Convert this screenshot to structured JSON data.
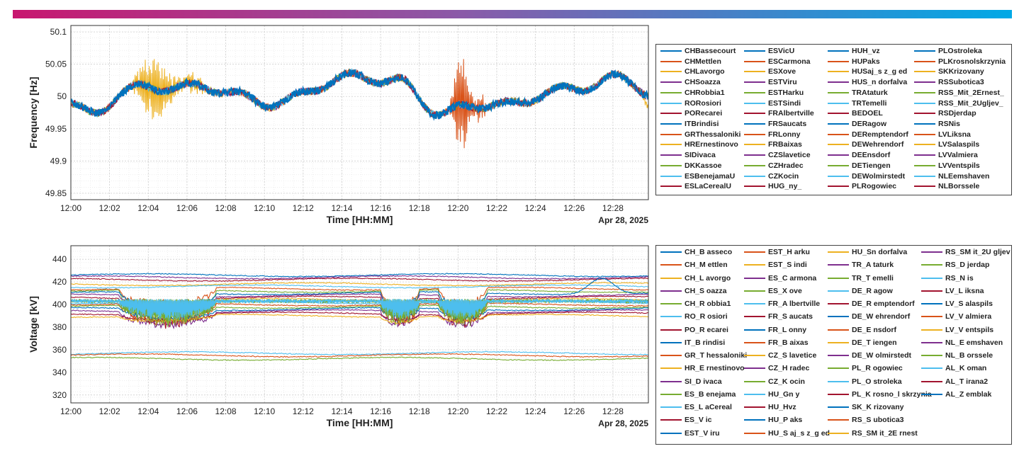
{
  "colors": {
    "topbar_start": "#c8176f",
    "topbar_end": "#00a9e6",
    "palette": [
      "#0072bd",
      "#d95319",
      "#edb120",
      "#7e2f8e",
      "#77ac30",
      "#4dbeee",
      "#a2142f"
    ]
  },
  "chart_data": [
    {
      "type": "line",
      "ylabel": "Frequency [Hz]",
      "xlabel": "Time [HH:MM]",
      "date_label": "Apr 28, 2025",
      "x_ticks": [
        "12:00",
        "12:02",
        "12:04",
        "12:06",
        "12:08",
        "12:10",
        "12:12",
        "12:14",
        "12:16",
        "12:18",
        "12:20",
        "12:22",
        "12:24",
        "12:26",
        "12:28"
      ],
      "y_ticks": [
        "49.85",
        "49.9",
        "49.95",
        "50",
        "50.05",
        "50.1"
      ],
      "xlim": [
        "12:00",
        "12:29:50"
      ],
      "ylim": [
        49.84,
        50.11
      ],
      "grid": "minor dotted",
      "legend_placement": "outside right",
      "legend_columns": 4,
      "legend": [
        "CHBassecourt",
        "CHMettlen",
        "CHLavorgo",
        "CHSoazza",
        "CHRobbia1",
        "RORosiori",
        "PORecarei",
        "ITBrindisi",
        "GRThessaloniki",
        "HRErnestinovo",
        "SIDivaca",
        "DKKassoe",
        "ESBenejamaU",
        "ESLaCerealU",
        "ESVicU",
        "ESCarmona",
        "ESXove",
        "ESTViru",
        "ESTHarku",
        "ESTSindi",
        "FRAlbertville",
        "FRSaucats",
        "FRLonny",
        "FRBaixas",
        "CZSlavetice",
        "CZHradec",
        "CZKocin",
        "HUG_ny_",
        "HUH_vz",
        "HUPaks",
        "HUSaj_s z_g ed",
        "HUS_n dorfalva",
        "TRAtaturk",
        "TRTemelli",
        "BEDOEL",
        "DERagow",
        "DERemptendorf",
        "DEWehrendorf",
        "DEEnsdorf",
        "DETiengen",
        "DEWolmirstedt",
        "PLRogowiec",
        "PLOstroleka",
        "PLKrosnolskrzynia",
        "SKKrizovany",
        "RSSubotica3",
        "RSS_Mit_2Ernest_",
        "RSS_Mit_2Ugljev_",
        "RSDjerdap",
        "RSNis",
        "LVLiksna",
        "LVSalaspils",
        "LVValmiera",
        "LVVentspils",
        "NLEemshaven",
        "NLBorssele"
      ],
      "series_profile": {
        "base": 50.0,
        "oscillation_bursts": [
          {
            "from": "12:03",
            "to": "12:07",
            "amplitude_hz": 0.06,
            "series": "ESXove"
          },
          {
            "from": "12:19:30",
            "to": "12:21:30",
            "amplitude_hz": 0.1,
            "series": "ESCarmona"
          }
        ]
      }
    },
    {
      "type": "line",
      "ylabel": "Voltage [kV]",
      "xlabel": "Time [HH:MM]",
      "date_label": "Apr 28, 2025",
      "x_ticks": [
        "12:00",
        "12:02",
        "12:04",
        "12:06",
        "12:08",
        "12:10",
        "12:12",
        "12:14",
        "12:16",
        "12:18",
        "12:20",
        "12:22",
        "12:24",
        "12:26",
        "12:28"
      ],
      "y_ticks": [
        "320",
        "340",
        "360",
        "380",
        "400",
        "420",
        "440"
      ],
      "xlim": [
        "12:00",
        "12:29:50"
      ],
      "ylim": [
        313,
        452
      ],
      "grid": "minor dotted",
      "legend_placement": "outside right",
      "legend_columns": 4,
      "legend": [
        "CH_B asseco",
        "CH_M ettlen",
        "CH_L avorgo",
        "CH_S oazza",
        "CH_R obbia1",
        "RO_R osiori",
        "PO_R ecarei",
        "IT_B rindisi",
        "GR_T hessaloniki",
        "HR_E rnestinovo",
        "SI_D ivaca",
        "ES_B enejama",
        "ES_L aCereal",
        "ES_V ic",
        "EST_V iru",
        "EST_H arku",
        "EST_S indi",
        "ES_C armona",
        "ES_X ove",
        "FR_A lbertville",
        "FR_S aucats",
        "FR_L onny",
        "FR_B aixas",
        "CZ_S lavetice",
        "CZ_H radec",
        "CZ_K ocin",
        "HU_Gn y",
        "HU_Hvz",
        "HU_P aks",
        "HU_S aj_s z_g ed",
        "HU_Sn dorfalva",
        "TR_A taturk",
        "TR_T emelli",
        "DE_R agow",
        "DE_R emptendorf",
        "DE_W ehrendorf",
        "DE_E nsdorf",
        "DE_T iengen",
        "DE_W olmirstedt",
        "PL_R ogowiec",
        "PL_O stroleka",
        "PL_K rosno_l skrzynia",
        "SK_K rizovany",
        "RS_S ubotica3",
        "RS_SM it_2E rnest",
        "RS_SM it_2U gljev",
        "RS_D jerdap",
        "RS_N is",
        "LV_L iksna",
        "LV_S alaspils",
        "LV_V almiera",
        "LV_V entspils",
        "NL_E emshaven",
        "NL_B orssele",
        "AL_K oman",
        "AL_T irana2",
        "AL_Z emblak"
      ],
      "series_profile": {
        "levels_kv": [
          426,
          424,
          422,
          418,
          416,
          414,
          412,
          410,
          408,
          406,
          404,
          402,
          400,
          398,
          396,
          394,
          392,
          390,
          357,
          355,
          352
        ],
        "dips": [
          {
            "from": "12:02:30",
            "to": "12:07:30",
            "min_kv": 380
          },
          {
            "from": "12:16",
            "to": "12:18",
            "min_kv": 386
          },
          {
            "from": "12:19",
            "to": "12:21:30",
            "min_kv": 382
          }
        ]
      }
    }
  ]
}
